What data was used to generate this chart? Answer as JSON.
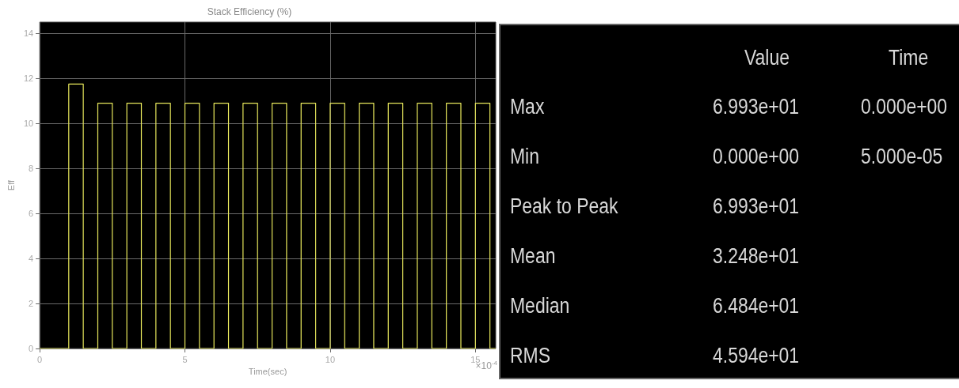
{
  "chart_data": [
    {
      "type": "step",
      "title": "Stack Efficiency (%)",
      "xlabel": "Time(sec)",
      "ylabel": "Eff",
      "color": "#e8e85c",
      "x": [
        0,
        1,
        1.5,
        2,
        2.5,
        3,
        3.5,
        4,
        4.5,
        5,
        5.5,
        6,
        6.5,
        7,
        7.5,
        8,
        8.5,
        9,
        9.5,
        10,
        10.5,
        11,
        11.5,
        12,
        12.5,
        13,
        13.5,
        14,
        14.5,
        15,
        15.5,
        15.7
      ],
      "values": [
        0,
        11.75,
        0,
        10.9,
        0,
        10.9,
        0,
        10.9,
        0,
        10.9,
        0,
        10.9,
        0,
        10.9,
        0,
        10.9,
        0,
        10.9,
        0,
        10.9,
        0,
        10.9,
        0,
        10.9,
        0,
        10.9,
        0,
        10.9,
        0,
        10.9,
        0,
        0
      ],
      "xlim": [
        0,
        15.7
      ],
      "xticks": [
        0,
        5,
        10,
        15
      ],
      "ylim": [
        0,
        14.5
      ],
      "yticks": [
        0,
        2,
        4,
        6,
        8,
        10,
        12,
        14
      ],
      "grid": true,
      "annotations": [
        "×10$^{-4}$"
      ]
    },
    {
      "type": "other",
      "annotations": [
        null,
        "Value",
        "Time",
        "Max",
        "6.993e+01",
        "0.000e+00",
        "Min",
        "0.000e+00",
        "5.000e-05",
        "Peak to Peak",
        "6.993e+01",
        null,
        "Mean",
        "3.248e+01",
        null,
        "Median",
        "6.484e+01",
        null,
        "RMS",
        "4.594e+01",
        null
      ]
    }
  ]
}
